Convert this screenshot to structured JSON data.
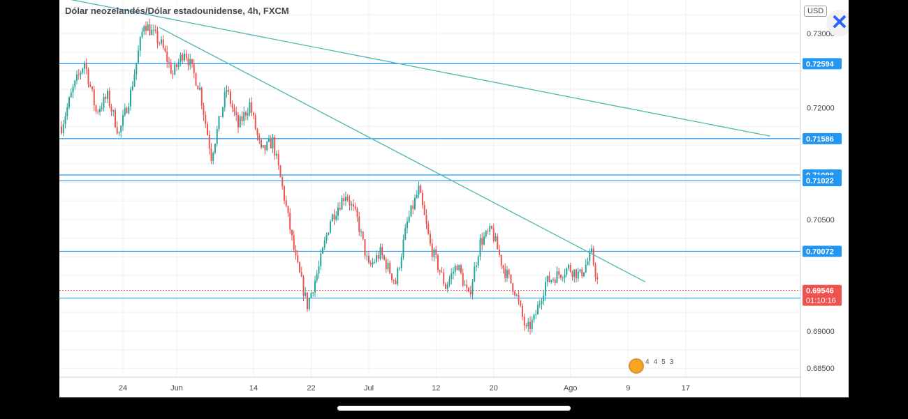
{
  "header": {
    "title": "Dólar neozelandés/Dólar estadounidense, 4h, FXCM"
  },
  "currency_badge": "USD",
  "close_icon": "close-x-icon",
  "events_strip": {
    "icon": "us-flag-event-icon",
    "counts": [
      "4",
      "4",
      "5",
      "3"
    ]
  },
  "colors": {
    "up": "#26a69a",
    "down": "#ef5350",
    "hline": "#2196f3",
    "trend": "#4db6ac",
    "grid": "#eef0f3",
    "axis_text": "#434651",
    "price_badge": "#ef5350",
    "level_badge": "#2196f3"
  },
  "chart_data": {
    "type": "candlestick",
    "title": "Dólar neozelandés/Dólar estadounidense, 4h, FXCM",
    "ylim": [
      0.6838,
      0.7345
    ],
    "y_ticks": [
      "0.68500",
      "0.69000",
      "0.70500",
      "0.72000",
      "0.73000"
    ],
    "x_ticks": [
      {
        "label": "24",
        "index": 32
      },
      {
        "label": "Jun",
        "index": 60
      },
      {
        "label": "14",
        "index": 100
      },
      {
        "label": "22",
        "index": 130
      },
      {
        "label": "Jul",
        "index": 160
      },
      {
        "label": "12",
        "index": 195
      },
      {
        "label": "20",
        "index": 225
      },
      {
        "label": "Ago",
        "index": 265
      },
      {
        "label": "9",
        "index": 295
      },
      {
        "label": "17",
        "index": 325
      }
    ],
    "horizontal_levels": [
      {
        "value": 0.72594,
        "label": "0.72594"
      },
      {
        "value": 0.71586,
        "label": "0.71586"
      },
      {
        "value": 0.71098,
        "label": "0.71098"
      },
      {
        "value": 0.71022,
        "label": "0.71022"
      },
      {
        "value": 0.70072,
        "label": "0.70072"
      },
      {
        "value": 0.69443,
        "label": "0.69443"
      }
    ],
    "current_price": {
      "value": 0.69546,
      "label": "0.69546",
      "countdown": "01:10:16"
    },
    "trendlines": [
      {
        "from": {
          "index": 0,
          "value": 0.7348
        },
        "to": {
          "index": 369,
          "value": 0.7162
        }
      },
      {
        "from": {
          "index": 51,
          "value": 0.7308
        },
        "to": {
          "index": 304,
          "value": 0.6966
        }
      }
    ],
    "waypoints": [
      [
        0,
        0.7175
      ],
      [
        6,
        0.7225
      ],
      [
        12,
        0.7262
      ],
      [
        18,
        0.7195
      ],
      [
        24,
        0.7215
      ],
      [
        30,
        0.7165
      ],
      [
        36,
        0.722
      ],
      [
        43,
        0.7315
      ],
      [
        52,
        0.7285
      ],
      [
        58,
        0.7245
      ],
      [
        64,
        0.7278
      ],
      [
        72,
        0.7225
      ],
      [
        78,
        0.7135
      ],
      [
        86,
        0.7225
      ],
      [
        92,
        0.7175
      ],
      [
        98,
        0.7205
      ],
      [
        104,
        0.714
      ],
      [
        110,
        0.7155
      ],
      [
        116,
        0.708
      ],
      [
        122,
        0.6995
      ],
      [
        128,
        0.6935
      ],
      [
        134,
        0.6985
      ],
      [
        140,
        0.705
      ],
      [
        148,
        0.7085
      ],
      [
        154,
        0.705
      ],
      [
        160,
        0.6985
      ],
      [
        166,
        0.7005
      ],
      [
        174,
        0.6965
      ],
      [
        180,
        0.7045
      ],
      [
        186,
        0.709
      ],
      [
        192,
        0.7015
      ],
      [
        200,
        0.696
      ],
      [
        206,
        0.699
      ],
      [
        212,
        0.6945
      ],
      [
        218,
        0.702
      ],
      [
        224,
        0.7035
      ],
      [
        230,
        0.6985
      ],
      [
        236,
        0.6955
      ],
      [
        242,
        0.69
      ],
      [
        246,
        0.6915
      ],
      [
        252,
        0.6965
      ],
      [
        258,
        0.6975
      ],
      [
        264,
        0.6985
      ],
      [
        270,
        0.6975
      ],
      [
        276,
        0.7003
      ],
      [
        280,
        0.6955
      ]
    ]
  }
}
